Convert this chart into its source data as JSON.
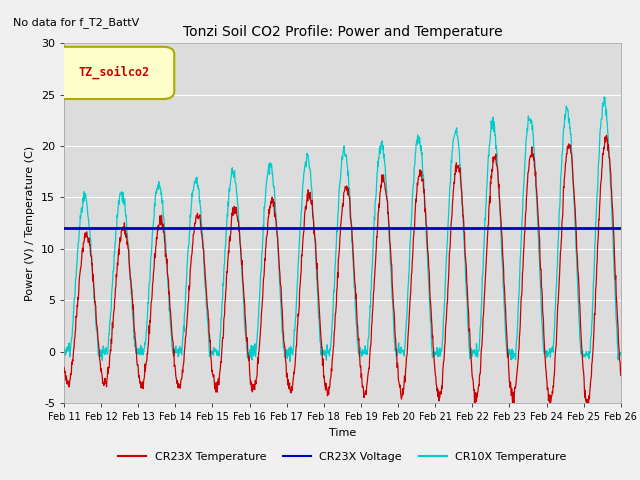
{
  "title": "Tonzi Soil CO2 Profile: Power and Temperature",
  "top_left_note": "No data for f_T2_BattV",
  "ylabel": "Power (V) / Temperature (C)",
  "xlabel": "Time",
  "ylim": [
    -5,
    30
  ],
  "background_color": "#dcdcdc",
  "plot_bg_color": "#dcdcdc",
  "legend_label": "TZ_soilco2",
  "x_tick_labels": [
    "Feb 11",
    "Feb 12",
    "Feb 13",
    "Feb 14",
    "Feb 15",
    "Feb 16",
    "Feb 17",
    "Feb 18",
    "Feb 19",
    "Feb 20",
    "Feb 21",
    "Feb 22",
    "Feb 23",
    "Feb 24",
    "Feb 25",
    "Feb 26"
  ],
  "cr23x_temp_color": "#cc0000",
  "cr23x_volt_color": "#0000cc",
  "cr10x_temp_color": "#00cccc",
  "voltage_value": 12.0,
  "title_fontsize": 10,
  "axis_fontsize": 8,
  "note_fontsize": 8
}
